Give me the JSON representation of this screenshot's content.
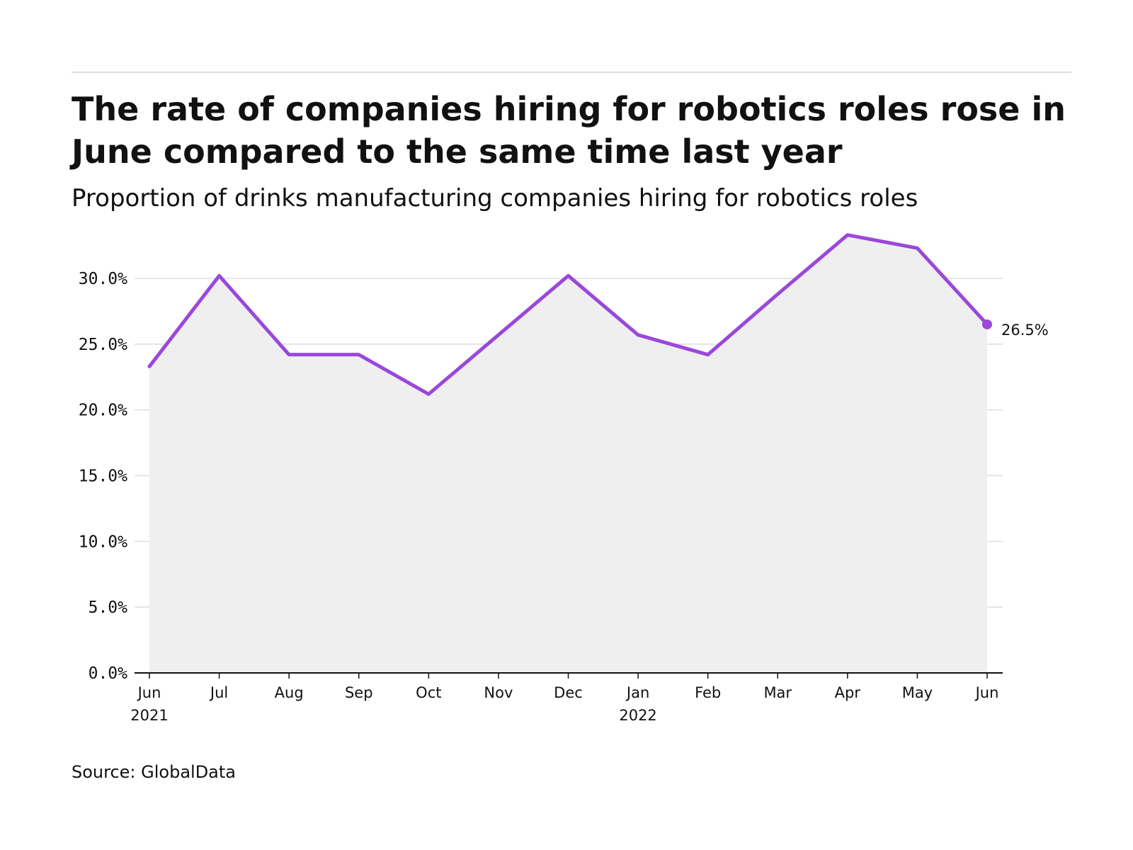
{
  "header": {
    "title": "The rate of companies hiring for robotics roles rose in June compared to the same time last year",
    "subtitle": "Proportion of drinks manufacturing companies hiring for robotics roles"
  },
  "footer": {
    "source": "Source: GlobalData"
  },
  "colors": {
    "line": "#9B47DB",
    "area": "#EFEFEF",
    "grid": "#DDDDDD",
    "axis": "#111111"
  },
  "chart_data": {
    "type": "area",
    "title": "The rate of companies hiring for robotics roles rose in June compared to the same time last year",
    "subtitle": "Proportion of drinks manufacturing companies hiring for robotics roles",
    "xlabel": "",
    "ylabel": "",
    "ylim": [
      0,
      30
    ],
    "grid": true,
    "y_ticks": [
      0,
      5,
      10,
      15,
      20,
      25,
      30
    ],
    "y_tick_labels": [
      "0.0%",
      "5.0%",
      "10.0%",
      "15.0%",
      "20.0%",
      "25.0%",
      "30.0%"
    ],
    "categories": [
      "Jun",
      "Jul",
      "Aug",
      "Sep",
      "Oct",
      "Nov",
      "Dec",
      "Jan",
      "Feb",
      "Mar",
      "Apr",
      "May",
      "Jun"
    ],
    "year_labels": [
      "2021",
      "",
      "",
      "",
      "",
      "",
      "",
      "2022",
      "",
      "",
      "",
      "",
      ""
    ],
    "series": [
      {
        "name": "Proportion of drinks manufacturing companies hiring for robotics roles",
        "values": [
          23.3,
          30.2,
          24.2,
          24.2,
          21.2,
          25.7,
          30.2,
          25.7,
          24.2,
          28.8,
          33.3,
          32.3,
          26.5
        ]
      }
    ],
    "end_label": "26.5%"
  }
}
